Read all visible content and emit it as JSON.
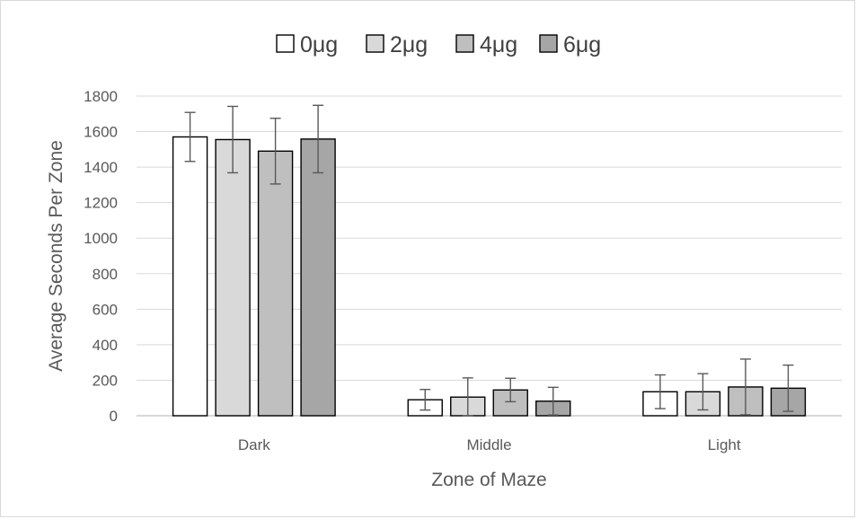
{
  "chart_data": {
    "type": "bar",
    "title": "",
    "xlabel": "Zone of Maze",
    "ylabel": "Average Seconds  Per Zone",
    "categories": [
      "Dark",
      "Middle",
      "Light"
    ],
    "ylim": [
      0,
      1800
    ],
    "yticks": [
      "0",
      "200",
      "400",
      "600",
      "800",
      "1000",
      "1200",
      "1400",
      "1600",
      "1800"
    ],
    "grid": true,
    "legend_position": "top",
    "series": [
      {
        "name": "0μg",
        "color": "#ffffff",
        "values": [
          1570,
          90,
          135
        ],
        "error": [
          138,
          58,
          95
        ]
      },
      {
        "name": "2μg",
        "color": "#d9d9d9",
        "values": [
          1555,
          105,
          135
        ],
        "error": [
          187,
          108,
          102
        ]
      },
      {
        "name": "4μg",
        "color": "#bfbfbf",
        "values": [
          1490,
          145,
          162
        ],
        "error": [
          185,
          66,
          157
        ]
      },
      {
        "name": "6μg",
        "color": "#a6a6a6",
        "values": [
          1558,
          82,
          155
        ],
        "error": [
          190,
          78,
          130
        ]
      }
    ]
  }
}
